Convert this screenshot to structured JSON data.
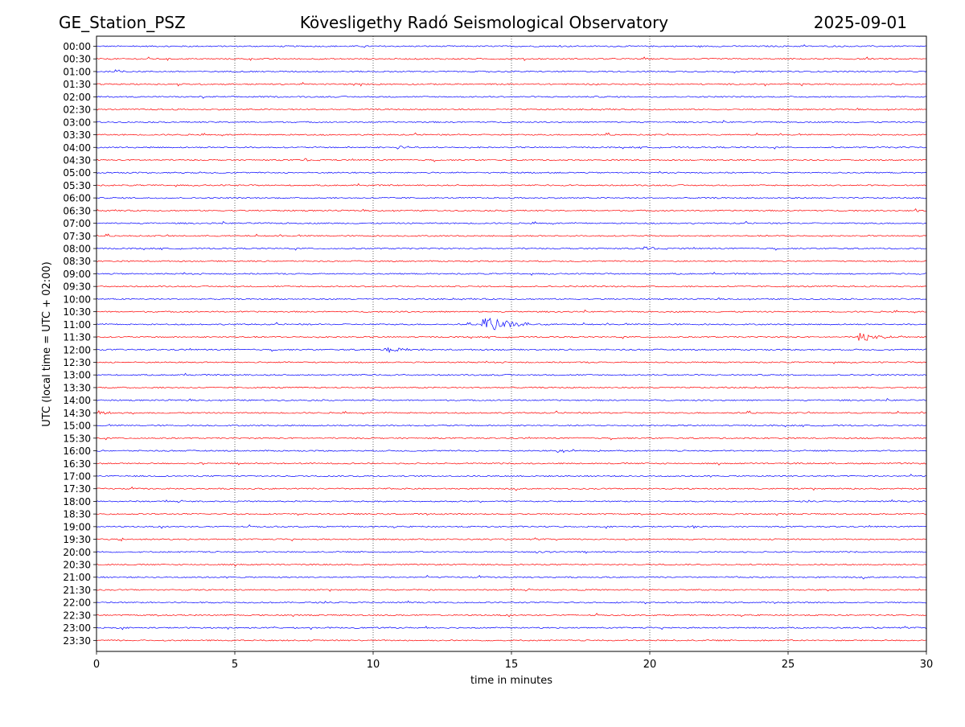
{
  "header": {
    "station": "GE_Station_PSZ",
    "observatory": "Kövesligethy Radó Seismological Observatory",
    "date": "2025-09-01"
  },
  "chart_data": {
    "type": "line",
    "title": "Kövesligethy Radó Seismological Observatory",
    "xlabel": "time in minutes",
    "ylabel": "UTC (local time = UTC + 02:00)",
    "xlim": [
      0,
      30
    ],
    "x_ticks": [
      0,
      5,
      10,
      15,
      20,
      25,
      30
    ],
    "x_tick_labels": [
      "0",
      "5",
      "10",
      "15",
      "20",
      "25",
      "30"
    ],
    "grid": "vertical dotted lines at x ticks",
    "row_labels": [
      "00:00",
      "00:30",
      "01:00",
      "01:30",
      "02:00",
      "02:30",
      "03:00",
      "03:30",
      "04:00",
      "04:30",
      "05:00",
      "05:30",
      "06:00",
      "06:30",
      "07:00",
      "07:30",
      "08:00",
      "08:30",
      "09:00",
      "09:30",
      "10:00",
      "10:30",
      "11:00",
      "11:30",
      "12:00",
      "12:30",
      "13:00",
      "13:30",
      "14:00",
      "14:30",
      "15:00",
      "15:30",
      "16:00",
      "16:30",
      "17:00",
      "17:30",
      "18:00",
      "18:30",
      "19:00",
      "19:30",
      "20:00",
      "20:30",
      "21:00",
      "21:30",
      "22:00",
      "22:30",
      "23:00",
      "23:30"
    ],
    "trace_colors": [
      "#0000ff",
      "#ff0000"
    ],
    "baseline_noise_amplitude": 0.15,
    "events": [
      {
        "row": "04:00",
        "start_min": 10.8,
        "duration_min": 1.5,
        "amplitude": 0.6
      },
      {
        "row": "04:30",
        "start_min": 7.5,
        "duration_min": 1.0,
        "amplitude": 0.35
      },
      {
        "row": "05:00",
        "start_min": 3.0,
        "duration_min": 1.0,
        "amplitude": 0.3
      },
      {
        "row": "06:30",
        "start_min": 29.6,
        "duration_min": 0.4,
        "amplitude": 0.7
      },
      {
        "row": "08:00",
        "start_min": 19.7,
        "duration_min": 1.8,
        "amplitude": 0.5
      },
      {
        "row": "11:00",
        "start_min": 13.9,
        "duration_min": 2.5,
        "amplitude": 2.6
      },
      {
        "row": "11:30",
        "start_min": 27.5,
        "duration_min": 1.8,
        "amplitude": 1.4
      },
      {
        "row": "12:00",
        "start_min": 10.4,
        "duration_min": 1.8,
        "amplitude": 0.9
      },
      {
        "row": "14:30",
        "start_min": 0.0,
        "duration_min": 1.6,
        "amplitude": 0.6
      },
      {
        "row": "16:00",
        "start_min": 16.5,
        "duration_min": 2.5,
        "amplitude": 0.55
      },
      {
        "row": "19:00",
        "start_min": 21.5,
        "duration_min": 0.8,
        "amplitude": 0.35
      },
      {
        "row": "19:30",
        "start_min": 0.8,
        "duration_min": 0.8,
        "amplitude": 0.7
      },
      {
        "row": "20:00",
        "start_min": 15.8,
        "duration_min": 1.2,
        "amplitude": 0.4
      }
    ]
  }
}
